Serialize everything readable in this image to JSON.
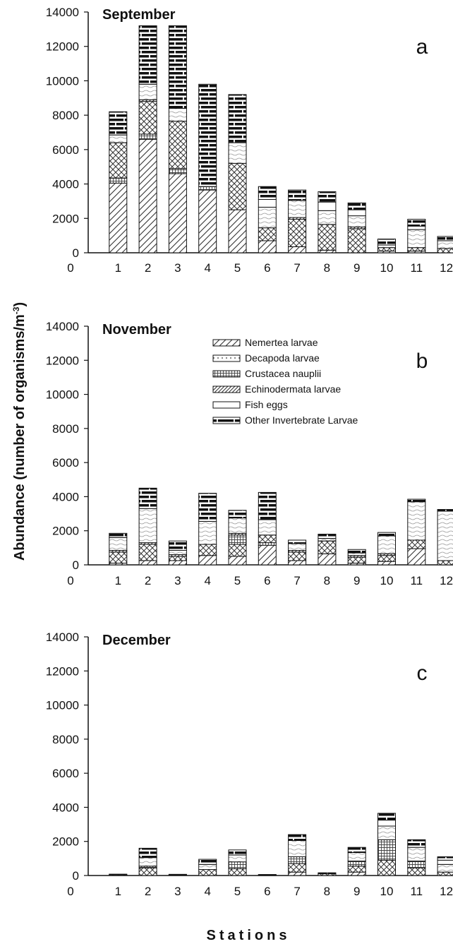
{
  "figure": {
    "ylabel": "Abundance (number of organisms/m",
    "ylabel_sup": "-3",
    "ylabel_close": ")",
    "xlabel": "Stations"
  },
  "legend": [
    {
      "name": "Nemertea larvae",
      "pattern": "diag-sparse"
    },
    {
      "name": "Decapoda larvae",
      "pattern": "dots"
    },
    {
      "name": "Crustacea nauplii",
      "pattern": "grid"
    },
    {
      "name": "Echinodermata larvae",
      "pattern": "diag-dense"
    },
    {
      "name": "Fish eggs",
      "pattern": "blank"
    },
    {
      "name": "Other Invertebrate Larvae",
      "pattern": "brick"
    }
  ],
  "chart_data": [
    {
      "type": "bar",
      "stacked": true,
      "title": "September",
      "panel_label": "a",
      "xlabel": "",
      "ylabel": "Abundance (number of organisms/m-3)",
      "categories": [
        "1",
        "2",
        "3",
        "4",
        "5",
        "6",
        "7",
        "8",
        "9",
        "10",
        "11",
        "12"
      ],
      "x_ticks": [
        "0",
        "1",
        "2",
        "3",
        "4",
        "5",
        "6",
        "7",
        "8",
        "9",
        "10",
        "11",
        "12"
      ],
      "ylim": [
        0,
        14000
      ],
      "y_ticks": [
        0,
        2000,
        4000,
        6000,
        8000,
        10000,
        12000,
        14000
      ],
      "segment_patterns": [
        "diag-sparse",
        "grid",
        "crosshatch",
        "diag-dense",
        "wavy",
        "blank",
        "brick"
      ],
      "segments": [
        [
          [
            4050,
            "diag-sparse"
          ],
          [
            300,
            "grid"
          ],
          [
            2050,
            "crosshatch"
          ],
          [
            450,
            "wavy"
          ],
          [
            1350,
            "brick"
          ]
        ],
        [
          [
            6600,
            "diag-sparse"
          ],
          [
            300,
            "grid"
          ],
          [
            1900,
            "crosshatch"
          ],
          [
            100,
            "diag-dense"
          ],
          [
            900,
            "wavy"
          ],
          [
            3400,
            "brick"
          ]
        ],
        [
          [
            4600,
            "diag-sparse"
          ],
          [
            300,
            "grid"
          ],
          [
            2750,
            "crosshatch"
          ],
          [
            750,
            "wavy"
          ],
          [
            4800,
            "brick"
          ]
        ],
        [
          [
            3650,
            "diag-sparse"
          ],
          [
            200,
            "grid"
          ],
          [
            5950,
            "brick"
          ]
        ],
        [
          [
            2500,
            "diag-sparse"
          ],
          [
            2700,
            "crosshatch"
          ],
          [
            1200,
            "wavy"
          ],
          [
            2800,
            "brick"
          ]
        ],
        [
          [
            700,
            "diag-sparse"
          ],
          [
            750,
            "crosshatch"
          ],
          [
            1200,
            "wavy"
          ],
          [
            450,
            "blank"
          ],
          [
            750,
            "brick"
          ]
        ],
        [
          [
            350,
            "diag-sparse"
          ],
          [
            1600,
            "crosshatch"
          ],
          [
            100,
            "diag-dense"
          ],
          [
            1000,
            "wavy"
          ],
          [
            600,
            "brick"
          ]
        ],
        [
          [
            150,
            "diag-sparse"
          ],
          [
            1500,
            "crosshatch"
          ],
          [
            800,
            "wavy"
          ],
          [
            500,
            "blank"
          ],
          [
            600,
            "brick"
          ]
        ],
        [
          [
            1400,
            "crosshatch"
          ],
          [
            100,
            "diag-dense"
          ],
          [
            650,
            "wavy"
          ],
          [
            350,
            "blank"
          ],
          [
            400,
            "brick"
          ]
        ],
        [
          [
            100,
            "diag-sparse"
          ],
          [
            200,
            "crosshatch"
          ],
          [
            150,
            "wavy"
          ],
          [
            350,
            "brick"
          ]
        ],
        [
          [
            100,
            "diag-sparse"
          ],
          [
            200,
            "crosshatch"
          ],
          [
            1050,
            "wavy"
          ],
          [
            200,
            "blank"
          ],
          [
            400,
            "brick"
          ]
        ],
        [
          [
            250,
            "crosshatch"
          ],
          [
            450,
            "wavy"
          ],
          [
            250,
            "brick"
          ]
        ]
      ]
    },
    {
      "type": "bar",
      "stacked": true,
      "title": "November",
      "panel_label": "b",
      "xlabel": "",
      "ylabel": "Abundance (number of organisms/m-3)",
      "categories": [
        "1",
        "2",
        "3",
        "4",
        "5",
        "6",
        "7",
        "8",
        "9",
        "10",
        "11",
        "12"
      ],
      "x_ticks": [
        "0",
        "1",
        "2",
        "3",
        "4",
        "5",
        "6",
        "7",
        "8",
        "9",
        "10",
        "11",
        "12"
      ],
      "ylim": [
        0,
        14000
      ],
      "y_ticks": [
        0,
        2000,
        4000,
        6000,
        8000,
        10000,
        12000,
        14000
      ],
      "segments": [
        [
          [
            100,
            "diag-sparse"
          ],
          [
            650,
            "crosshatch"
          ],
          [
            100,
            "diag-dense"
          ],
          [
            750,
            "wavy"
          ],
          [
            250,
            "brick"
          ]
        ],
        [
          [
            250,
            "diag-sparse"
          ],
          [
            950,
            "crosshatch"
          ],
          [
            100,
            "diag-dense"
          ],
          [
            2000,
            "wavy"
          ],
          [
            1200,
            "brick"
          ]
        ],
        [
          [
            250,
            "diag-sparse"
          ],
          [
            250,
            "crosshatch"
          ],
          [
            100,
            "diag-dense"
          ],
          [
            250,
            "wavy"
          ],
          [
            550,
            "brick"
          ]
        ],
        [
          [
            550,
            "diag-sparse"
          ],
          [
            650,
            "crosshatch"
          ],
          [
            1350,
            "wavy"
          ],
          [
            1650,
            "brick"
          ]
        ],
        [
          [
            500,
            "diag-sparse"
          ],
          [
            700,
            "crosshatch"
          ],
          [
            550,
            "grid"
          ],
          [
            100,
            "diag-dense"
          ],
          [
            900,
            "wavy"
          ],
          [
            450,
            "brick"
          ]
        ],
        [
          [
            1150,
            "diag-sparse"
          ],
          [
            150,
            "grid"
          ],
          [
            450,
            "crosshatch"
          ],
          [
            900,
            "wavy"
          ],
          [
            1600,
            "brick"
          ]
        ],
        [
          [
            250,
            "diag-sparse"
          ],
          [
            500,
            "crosshatch"
          ],
          [
            100,
            "diag-dense"
          ],
          [
            400,
            "wavy"
          ],
          [
            200,
            "brick"
          ]
        ],
        [
          [
            650,
            "diag-sparse"
          ],
          [
            750,
            "crosshatch"
          ],
          [
            150,
            "wavy"
          ],
          [
            250,
            "brick"
          ]
        ],
        [
          [
            100,
            "diag-sparse"
          ],
          [
            350,
            "crosshatch"
          ],
          [
            100,
            "diag-dense"
          ],
          [
            150,
            "wavy"
          ],
          [
            200,
            "brick"
          ]
        ],
        [
          [
            200,
            "diag-sparse"
          ],
          [
            350,
            "crosshatch"
          ],
          [
            100,
            "diag-dense"
          ],
          [
            1050,
            "wavy"
          ],
          [
            200,
            "brick"
          ]
        ],
        [
          [
            950,
            "diag-sparse"
          ],
          [
            500,
            "crosshatch"
          ],
          [
            2250,
            "wavy"
          ],
          [
            150,
            "brick"
          ]
        ],
        [
          [
            250,
            "crosshatch"
          ],
          [
            2900,
            "wavy"
          ],
          [
            100,
            "brick"
          ]
        ]
      ]
    },
    {
      "type": "bar",
      "stacked": true,
      "title": "December",
      "panel_label": "c",
      "xlabel": "Stations",
      "ylabel": "Abundance (number of organisms/m-3)",
      "categories": [
        "1",
        "2",
        "3",
        "4",
        "5",
        "6",
        "7",
        "8",
        "9",
        "10",
        "11",
        "12"
      ],
      "x_ticks": [
        "0",
        "1",
        "2",
        "3",
        "4",
        "5",
        "6",
        "7",
        "8",
        "9",
        "10",
        "11",
        "12"
      ],
      "ylim": [
        0,
        14000
      ],
      "y_ticks": [
        0,
        2000,
        4000,
        6000,
        8000,
        10000,
        12000,
        14000
      ],
      "segments": [
        [
          [
            50,
            "crosshatch"
          ],
          [
            30,
            "brick"
          ]
        ],
        [
          [
            450,
            "crosshatch"
          ],
          [
            100,
            "grid"
          ],
          [
            500,
            "wavy"
          ],
          [
            550,
            "brick"
          ]
        ],
        [
          [
            40,
            "crosshatch"
          ],
          [
            30,
            "brick"
          ]
        ],
        [
          [
            350,
            "crosshatch"
          ],
          [
            300,
            "wavy"
          ],
          [
            300,
            "brick"
          ]
        ],
        [
          [
            400,
            "crosshatch"
          ],
          [
            400,
            "grid"
          ],
          [
            400,
            "wavy"
          ],
          [
            300,
            "brick"
          ]
        ],
        [
          [
            30,
            "crosshatch"
          ],
          [
            30,
            "brick"
          ]
        ],
        [
          [
            200,
            "diag-sparse"
          ],
          [
            500,
            "crosshatch"
          ],
          [
            400,
            "grid"
          ],
          [
            950,
            "wavy"
          ],
          [
            350,
            "brick"
          ]
        ],
        [
          [
            100,
            "crosshatch"
          ],
          [
            60,
            "brick"
          ]
        ],
        [
          [
            200,
            "diag-sparse"
          ],
          [
            350,
            "crosshatch"
          ],
          [
            300,
            "grid"
          ],
          [
            500,
            "wavy"
          ],
          [
            300,
            "brick"
          ]
        ],
        [
          [
            900,
            "crosshatch"
          ],
          [
            1200,
            "grid"
          ],
          [
            800,
            "wavy"
          ],
          [
            350,
            "blank"
          ],
          [
            400,
            "brick"
          ]
        ],
        [
          [
            450,
            "crosshatch"
          ],
          [
            400,
            "grid"
          ],
          [
            800,
            "wavy"
          ],
          [
            450,
            "brick"
          ]
        ],
        [
          [
            200,
            "crosshatch"
          ],
          [
            450,
            "wavy"
          ],
          [
            250,
            "blank"
          ],
          [
            200,
            "brick"
          ]
        ]
      ]
    }
  ]
}
